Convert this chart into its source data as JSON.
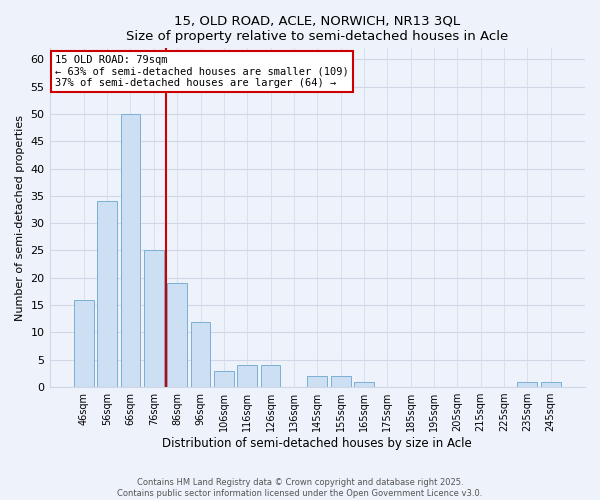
{
  "title": "15, OLD ROAD, ACLE, NORWICH, NR13 3QL",
  "subtitle": "Size of property relative to semi-detached houses in Acle",
  "xlabel": "Distribution of semi-detached houses by size in Acle",
  "ylabel": "Number of semi-detached properties",
  "bar_labels": [
    "46sqm",
    "56sqm",
    "66sqm",
    "76sqm",
    "86sqm",
    "96sqm",
    "106sqm",
    "116sqm",
    "126sqm",
    "136sqm",
    "145sqm",
    "155sqm",
    "165sqm",
    "175sqm",
    "185sqm",
    "195sqm",
    "205sqm",
    "215sqm",
    "225sqm",
    "235sqm",
    "245sqm"
  ],
  "bar_values": [
    16,
    34,
    50,
    25,
    19,
    12,
    3,
    4,
    4,
    0,
    2,
    2,
    1,
    0,
    0,
    0,
    0,
    0,
    0,
    1,
    1
  ],
  "bar_color": "#ccdff3",
  "bar_edge_color": "#7bafd4",
  "ylim": [
    0,
    62
  ],
  "yticks": [
    0,
    5,
    10,
    15,
    20,
    25,
    30,
    35,
    40,
    45,
    50,
    55,
    60
  ],
  "property_line_x": 3.5,
  "property_line_label": "15 OLD ROAD: 79sqm",
  "annotation_line1": "← 63% of semi-detached houses are smaller (109)",
  "annotation_line2": "37% of semi-detached houses are larger (64) →",
  "box_color": "#ffffff",
  "box_edge_color": "#cc0000",
  "line_color": "#cc0000",
  "footer1": "Contains HM Land Registry data © Crown copyright and database right 2025.",
  "footer2": "Contains public sector information licensed under the Open Government Licence v3.0.",
  "background_color": "#eef2fa",
  "grid_color": "#d0d8e8"
}
